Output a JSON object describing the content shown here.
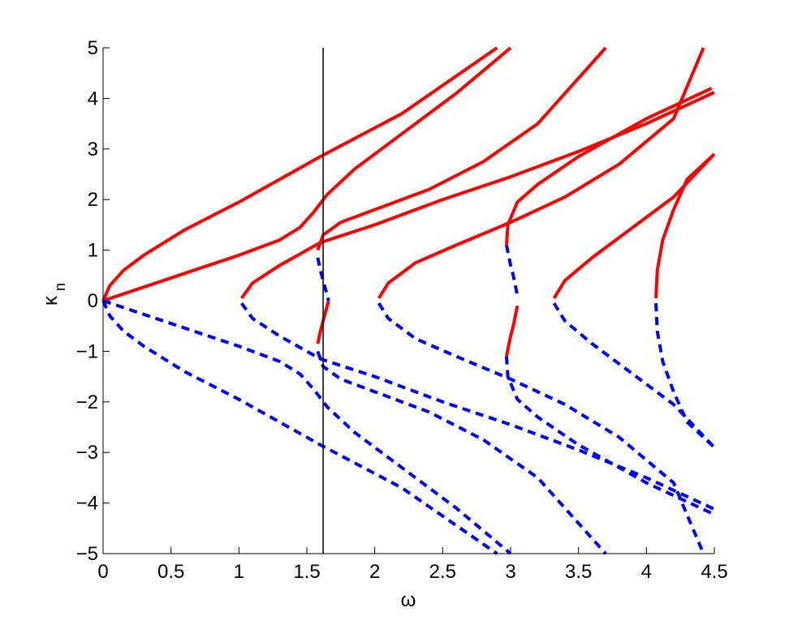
{
  "chart_data": {
    "type": "line",
    "xlabel": "ω",
    "ylabel": "κ",
    "ylabel_sub": "n",
    "xlim": [
      0,
      4.5
    ],
    "ylim": [
      -5,
      5
    ],
    "xticks": [
      0,
      0.5,
      1,
      1.5,
      2,
      2.5,
      3,
      3.5,
      4,
      4.5
    ],
    "yticks": [
      {
        "value": -5,
        "label": "−5"
      },
      {
        "value": -4,
        "label": "−4"
      },
      {
        "value": -3,
        "label": "−3"
      },
      {
        "value": -2,
        "label": "−2"
      },
      {
        "value": -1,
        "label": "−1"
      },
      0,
      1,
      2,
      3,
      4,
      5
    ],
    "vline": 1.62,
    "vline_color": "#000000",
    "series": [
      {
        "color": "#ff0000",
        "dash": false,
        "x": [
          0,
          0.05,
          0.15,
          0.3,
          0.6,
          1.0,
          1.6,
          2.2,
          2.9
        ],
        "values": [
          0,
          0.3,
          0.6,
          0.9,
          1.4,
          1.95,
          2.85,
          3.7,
          5.0
        ]
      },
      {
        "color": "#ff0000",
        "dash": false,
        "x": [
          0,
          0.5,
          1.0,
          1.3,
          1.45,
          1.55,
          1.65,
          1.85,
          2.2,
          2.6,
          3.0
        ],
        "values": [
          0,
          0.45,
          0.9,
          1.2,
          1.45,
          1.75,
          2.1,
          2.6,
          3.3,
          4.1,
          5.0
        ]
      },
      {
        "color": "#ff0000",
        "dash": false,
        "x": [
          1.02,
          1.1,
          1.3,
          1.6,
          2.0,
          2.5,
          3.0,
          3.5,
          4.0,
          4.5
        ],
        "values": [
          0.05,
          0.35,
          0.7,
          1.15,
          1.5,
          2.0,
          2.45,
          2.95,
          3.5,
          4.12
        ]
      },
      {
        "color": "#ff0000",
        "dash": false,
        "x": [
          1.58,
          1.62,
          1.75,
          2.0,
          2.4,
          2.8,
          3.2,
          3.7
        ],
        "values": [
          1.0,
          1.3,
          1.55,
          1.8,
          2.2,
          2.75,
          3.5,
          5.0
        ]
      },
      {
        "color": "#ff0000",
        "dash": false,
        "x": [
          2.97,
          2.98,
          3.05,
          3.2,
          3.5,
          4.0,
          4.48
        ],
        "values": [
          1.1,
          1.5,
          1.95,
          2.3,
          2.85,
          3.6,
          4.2
        ]
      },
      {
        "color": "#ff0000",
        "dash": false,
        "x": [
          2.03,
          2.1,
          2.3,
          2.6,
          3.0,
          3.4,
          3.8,
          4.2,
          4.42
        ],
        "values": [
          0.05,
          0.35,
          0.75,
          1.1,
          1.55,
          2.05,
          2.7,
          3.6,
          5.0
        ]
      },
      {
        "color": "#ff0000",
        "dash": false,
        "x": [
          3.32,
          3.4,
          3.6,
          3.9,
          4.2,
          4.5
        ],
        "values": [
          0.05,
          0.4,
          0.85,
          1.45,
          2.05,
          2.9
        ]
      },
      {
        "color": "#ff0000",
        "dash": false,
        "x": [
          4.07,
          4.08,
          4.12,
          4.2,
          4.3,
          4.5
        ],
        "values": [
          0.05,
          0.6,
          1.2,
          1.8,
          2.4,
          2.9
        ]
      },
      {
        "color": "#ff0000",
        "dash": false,
        "x": [
          1.58,
          1.6,
          1.64,
          1.66
        ],
        "values": [
          -0.85,
          -0.6,
          -0.2,
          0.0
        ]
      },
      {
        "color": "#ff0000",
        "dash": false,
        "x": [
          2.97,
          3.0,
          3.02,
          3.05
        ],
        "values": [
          -1.1,
          -0.7,
          -0.5,
          -0.1
        ]
      },
      {
        "color": "#0000ff",
        "dash": true,
        "x": [
          0,
          0.05,
          0.15,
          0.3,
          0.6,
          1.0,
          1.6,
          2.2,
          2.9
        ],
        "values": [
          0,
          -0.3,
          -0.6,
          -0.9,
          -1.4,
          -1.95,
          -2.85,
          -3.7,
          -5.0
        ]
      },
      {
        "color": "#0000ff",
        "dash": true,
        "x": [
          0,
          0.5,
          1.0,
          1.3,
          1.45,
          1.55,
          1.65,
          1.85,
          2.2,
          2.6,
          3.0
        ],
        "values": [
          0,
          -0.45,
          -0.9,
          -1.2,
          -1.45,
          -1.75,
          -2.1,
          -2.6,
          -3.3,
          -4.1,
          -5.0
        ]
      },
      {
        "color": "#0000ff",
        "dash": true,
        "x": [
          1.02,
          1.1,
          1.3,
          1.6,
          2.0,
          2.5,
          3.0,
          3.5,
          4.0,
          4.5
        ],
        "values": [
          -0.05,
          -0.35,
          -0.7,
          -1.15,
          -1.5,
          -2.0,
          -2.45,
          -2.95,
          -3.5,
          -4.12
        ]
      },
      {
        "color": "#0000ff",
        "dash": true,
        "x": [
          1.58,
          1.62,
          1.75,
          2.0,
          2.4,
          2.8,
          3.2,
          3.7
        ],
        "values": [
          -1.0,
          -1.3,
          -1.55,
          -1.8,
          -2.2,
          -2.75,
          -3.5,
          -5.0
        ]
      },
      {
        "color": "#0000ff",
        "dash": true,
        "x": [
          2.97,
          2.98,
          3.05,
          3.2,
          3.5,
          4.0,
          4.48
        ],
        "values": [
          -1.1,
          -1.5,
          -1.95,
          -2.3,
          -2.85,
          -3.6,
          -4.2
        ]
      },
      {
        "color": "#0000ff",
        "dash": true,
        "x": [
          2.03,
          2.1,
          2.3,
          2.6,
          3.0,
          3.4,
          3.8,
          4.2,
          4.42
        ],
        "values": [
          -0.05,
          -0.35,
          -0.75,
          -1.1,
          -1.55,
          -2.05,
          -2.7,
          -3.6,
          -5.0
        ]
      },
      {
        "color": "#0000ff",
        "dash": true,
        "x": [
          3.32,
          3.4,
          3.6,
          3.9,
          4.2,
          4.5
        ],
        "values": [
          -0.05,
          -0.4,
          -0.85,
          -1.45,
          -2.05,
          -2.9
        ]
      },
      {
        "color": "#0000ff",
        "dash": true,
        "x": [
          4.07,
          4.08,
          4.12,
          4.2,
          4.3,
          4.5
        ],
        "values": [
          -0.05,
          -0.6,
          -1.2,
          -1.8,
          -2.4,
          -2.9
        ]
      },
      {
        "color": "#0000ff",
        "dash": true,
        "x": [
          1.58,
          1.6,
          1.64,
          1.66
        ],
        "values": [
          0.85,
          0.6,
          0.2,
          0.0
        ]
      },
      {
        "color": "#0000ff",
        "dash": true,
        "x": [
          2.97,
          3.0,
          3.02,
          3.05
        ],
        "values": [
          1.1,
          0.7,
          0.5,
          0.1
        ]
      }
    ]
  }
}
